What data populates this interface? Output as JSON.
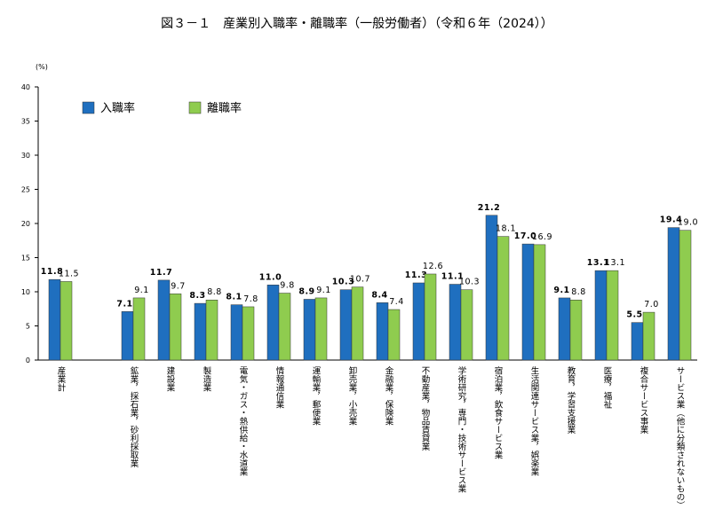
{
  "chart_data": {
    "type": "bar",
    "title": "図３－１　産業別入職率・離職率（一般労働者）（令和６年（2024））",
    "y_label": "(%)",
    "categories": [
      "産業計",
      null,
      "鉱業，採石業，砂利採取業",
      "建設業",
      "製造業",
      "電気・ガス・熱供給・水道業",
      "情報通信業",
      "運輸業，郵便業",
      "卸売業，小売業",
      "金融業，保険業",
      "不動産業，物品賃貸業",
      "学術研究，専門・技術サービス業",
      "宿泊業，飲食サービス業",
      "生活関連サービス業，娯楽業",
      "教育，学習支援業",
      "医療，福祉",
      "複合サービス事業",
      "サービス業（他に分類されないもの）"
    ],
    "series": [
      {
        "name": "入職率",
        "color": "#1f6fbf",
        "values": [
          11.8,
          null,
          7.1,
          11.7,
          8.3,
          8.1,
          11.0,
          8.9,
          10.3,
          8.4,
          11.3,
          11.1,
          21.2,
          17.0,
          9.1,
          13.1,
          5.5,
          19.4
        ],
        "value_labels": [
          "11.8",
          null,
          "7.1",
          "11.7",
          "8.3",
          "8.1",
          "11.0",
          "8.9",
          "10.3",
          "8.4",
          "11.3",
          "11.1",
          "21.2",
          "17.0",
          "9.1",
          "13.1",
          "5.5",
          "19.4"
        ]
      },
      {
        "name": "離職率",
        "color": "#8fcc4f",
        "values": [
          11.5,
          null,
          9.1,
          9.7,
          8.8,
          7.8,
          9.8,
          9.1,
          10.7,
          7.4,
          12.6,
          10.3,
          18.1,
          16.9,
          8.8,
          13.1,
          7.0,
          19.0
        ],
        "value_labels": [
          "11.5",
          null,
          "9.1",
          "9.7",
          "8.8",
          "7.8",
          "9.8",
          "9.1",
          "10.7",
          "7.4",
          "12.6",
          "10.3",
          "18.1",
          "16.9",
          "8.8",
          "13.1",
          "7.0",
          "19.0"
        ]
      }
    ],
    "ylim": [
      0,
      40
    ],
    "yticks": [
      0,
      5,
      10,
      15,
      20,
      25,
      30,
      35,
      40
    ],
    "grid": false
  }
}
